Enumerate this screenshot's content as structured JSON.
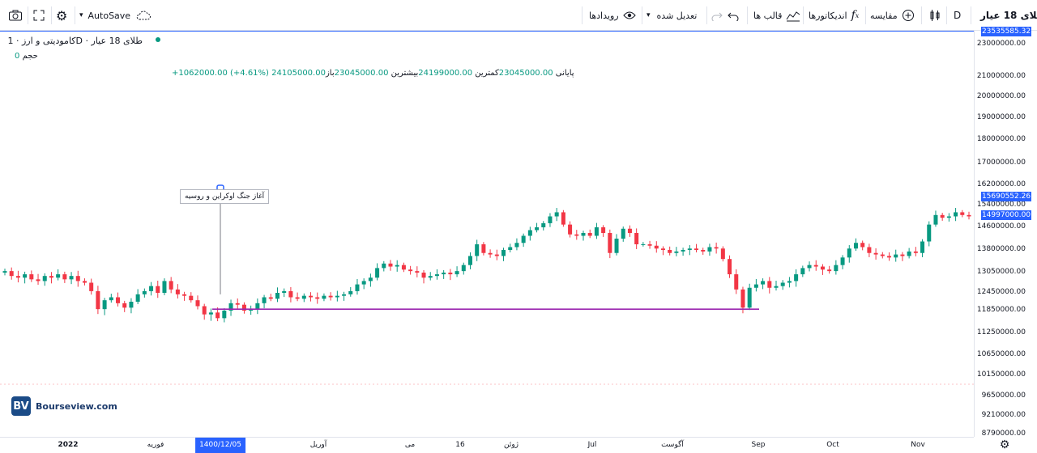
{
  "toolbar": {
    "symbol": "طلای 18 عیار",
    "interval": "D",
    "compare_label": "مقایسه",
    "indicators_label": "اندیکاتورها",
    "templates_label": "قالب ها",
    "adjust_label": "تعدیل شده",
    "events_label": "رویدادها",
    "autosave_label": "AutoSave"
  },
  "legend": {
    "title": "کامودیتی و ارز · 1D · طلای 18 عیار",
    "open_label": "باز",
    "open_value": "23045000.00",
    "high_label": "بیشترین",
    "high_value": "24199000.00",
    "low_label": "کمترین",
    "low_value": "23045000.00",
    "close_label": "پایانی",
    "close_value": "24105000.00",
    "change_value": "+1062000.00 (+4.61%)",
    "volume_label": "حجم",
    "volume_value": "0"
  },
  "annotation": {
    "text": "آغاز جنگ اوکراین و روسیه"
  },
  "brand": {
    "logo_text": "BV",
    "name": "Bourseview.com"
  },
  "axis_y": {
    "ticks": [
      "23000000.00",
      "21000000.00",
      "20000000.00",
      "19000000.00",
      "18000000.00",
      "17000000.00",
      "16200000.00",
      "15400000.00",
      "14600000.00",
      "13800000.00",
      "13050000.00",
      "12450000.00",
      "11850000.00",
      "11250000.00",
      "10650000.00",
      "10150000.00",
      "9650000.00",
      "9210000.00",
      "8790000.00"
    ],
    "flags": [
      {
        "text": "23535585.32",
        "color": "#2962ff"
      },
      {
        "text": "15690552.26",
        "color": "#2962ff"
      },
      {
        "text": "14997000.00",
        "color": "#2962ff"
      }
    ]
  },
  "axis_x": {
    "ticks": [
      "2022",
      "فوریه",
      "1400/12/05",
      "آوریل",
      "می",
      "16",
      "ژوئن",
      "Jul",
      "آگوست",
      "Sep",
      "Oct",
      "Nov"
    ],
    "highlight": "1400/12/05"
  },
  "colors": {
    "up": "#089981",
    "down": "#f23645",
    "support_line": "#9c27b0",
    "accent": "#2962ff"
  },
  "chart_data": {
    "type": "candlestick",
    "title": "",
    "xlabel": "",
    "ylabel": "",
    "ylim": [
      8790000,
      23000000
    ],
    "support_level": 11900000,
    "marker_price": 12400000,
    "closes": [
      13100000,
      12950000,
      12900000,
      13000000,
      12850000,
      12800000,
      12950000,
      12900000,
      13000000,
      12850000,
      12950000,
      12800000,
      12750000,
      12500000,
      11900000,
      12200000,
      12300000,
      12100000,
      11950000,
      12150000,
      12400000,
      12500000,
      12650000,
      12450000,
      12800000,
      12550000,
      12400000,
      12350000,
      12200000,
      12000000,
      11750000,
      11800000,
      11650000,
      11850000,
      12100000,
      12050000,
      11850000,
      11900000,
      12100000,
      12300000,
      12250000,
      12450000,
      12500000,
      12300000,
      12250000,
      12350000,
      12300000,
      12250000,
      12350000,
      12300000,
      12350000,
      12400000,
      12500000,
      12700000,
      12800000,
      12900000,
      13200000,
      13350000,
      13250000,
      13300000,
      13150000,
      13100000,
      13050000,
      12900000,
      12950000,
      13000000,
      13050000,
      13000000,
      13100000,
      13300000,
      13600000,
      14000000,
      13700000,
      13650000,
      13600000,
      13800000,
      13900000,
      14050000,
      14300000,
      14500000,
      14600000,
      14750000,
      15000000,
      15150000,
      14700000,
      14350000,
      14300000,
      14400000,
      14300000,
      14600000,
      14400000,
      13700000,
      14200000,
      14550000,
      14400000,
      14000000,
      14000000,
      13950000,
      13850000,
      13800000,
      13700000,
      13750000,
      13800000,
      13850000,
      13800000,
      13750000,
      13900000,
      13850000,
      13500000,
      13000000,
      12550000,
      11950000,
      12600000,
      12700000,
      12800000,
      12600000,
      12650000,
      12750000,
      12800000,
      13000000,
      13200000,
      13300000,
      13250000,
      13150000,
      13100000,
      13300000,
      13550000,
      13850000,
      14050000,
      13900000,
      13700000,
      13650000,
      13600000,
      13550000,
      13650000,
      13600000,
      13750000,
      13700000,
      14100000,
      14700000,
      15050000,
      14950000,
      15000000,
      15150000,
      15050000,
      15000000
    ]
  }
}
